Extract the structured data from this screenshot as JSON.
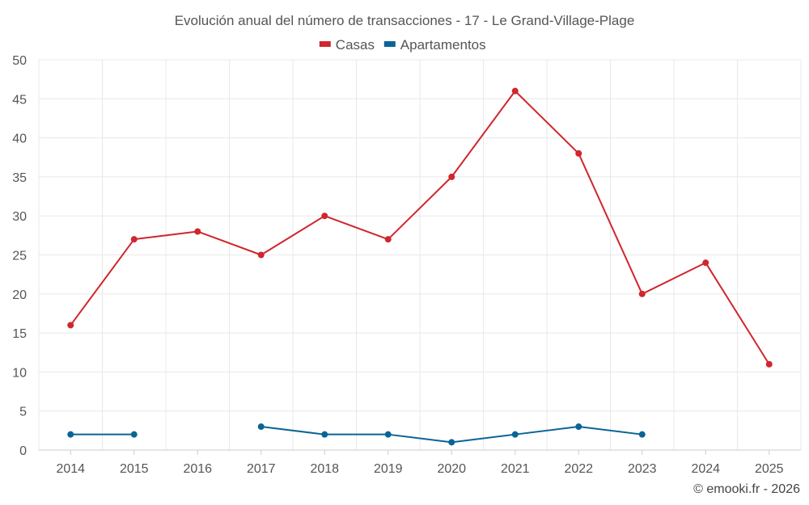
{
  "chart_data": {
    "type": "line",
    "title": "Evolución anual del número de transacciones - 17 - Le Grand-Village-Plage",
    "categories": [
      "2014",
      "2015",
      "2016",
      "2017",
      "2018",
      "2019",
      "2020",
      "2021",
      "2022",
      "2023",
      "2024",
      "2025"
    ],
    "series": [
      {
        "name": "Casas",
        "color": "#d0262d",
        "values": [
          16,
          27,
          28,
          25,
          30,
          27,
          35,
          46,
          38,
          20,
          24,
          11
        ]
      },
      {
        "name": "Apartamentos",
        "color": "#0a6496",
        "values": [
          2,
          2,
          null,
          3,
          2,
          2,
          1,
          2,
          3,
          2,
          null,
          null
        ]
      }
    ],
    "ylim": [
      0,
      50
    ],
    "yticks": [
      0,
      5,
      10,
      15,
      20,
      25,
      30,
      35,
      40,
      45,
      50
    ],
    "xlabel": "",
    "ylabel": "",
    "grid": true,
    "legend": "top-center"
  },
  "footer": "© emooki.fr - 2026"
}
